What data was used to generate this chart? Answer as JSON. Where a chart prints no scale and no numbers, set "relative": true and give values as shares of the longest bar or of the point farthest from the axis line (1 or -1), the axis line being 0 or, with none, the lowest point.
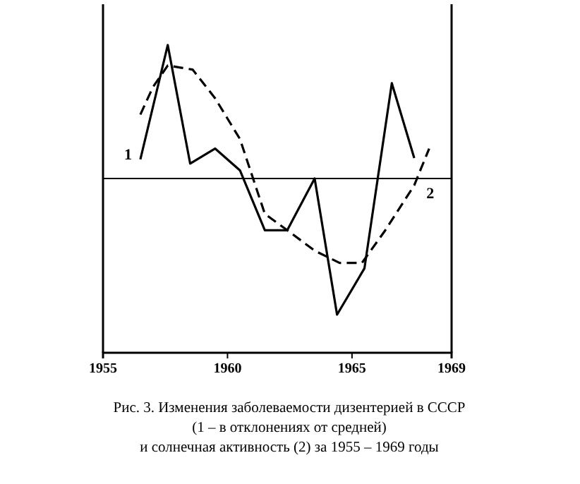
{
  "chart_data": {
    "type": "line",
    "title": "Рис. 3. Изменения заболеваемости дизентерией в СССР\n(1 – в отклонениях от средней)\nи солнечная активность (2) за 1955 – 1969 годы",
    "relative": true,
    "xlim": [
      1955,
      1969
    ],
    "xticks": [
      1955,
      1960,
      1965,
      1969
    ],
    "legend": false,
    "ref_lines": [
      {
        "axis": "y",
        "value": 0
      }
    ],
    "series": [
      {
        "name": "1",
        "color": "#000000",
        "line_style": "solid",
        "x": [
          1956.5,
          1957.6,
          1958.5,
          1959.5,
          1960.5,
          1961.5,
          1962.4,
          1963.5,
          1964.4,
          1965.5,
          1966.6,
          1967.5
        ],
        "values": [
          0.14,
          0.98,
          0.11,
          0.22,
          0.06,
          -0.38,
          -0.38,
          0,
          -1,
          -0.66,
          0.7,
          0.15
        ]
      },
      {
        "name": "2",
        "color": "#000000",
        "line_style": "dashed",
        "x": [
          1956.5,
          1957.0,
          1957.6,
          1958.6,
          1959.5,
          1960.5,
          1961.5,
          1962.4,
          1963.5,
          1964.5,
          1965.4,
          1966.3,
          1967.5,
          1968.1
        ],
        "values": [
          0.47,
          0.67,
          0.83,
          0.8,
          0.59,
          0.29,
          -0.26,
          -0.38,
          -0.53,
          -0.62,
          -0.62,
          -0.39,
          -0.05,
          0.22
        ]
      }
    ]
  }
}
